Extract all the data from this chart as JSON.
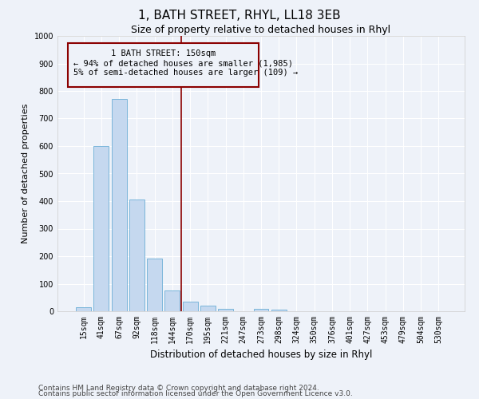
{
  "title": "1, BATH STREET, RHYL, LL18 3EB",
  "subtitle": "Size of property relative to detached houses in Rhyl",
  "xlabel": "Distribution of detached houses by size in Rhyl",
  "ylabel": "Number of detached properties",
  "categories": [
    "15sqm",
    "41sqm",
    "67sqm",
    "92sqm",
    "118sqm",
    "144sqm",
    "170sqm",
    "195sqm",
    "221sqm",
    "247sqm",
    "273sqm",
    "298sqm",
    "324sqm",
    "350sqm",
    "376sqm",
    "401sqm",
    "427sqm",
    "453sqm",
    "479sqm",
    "504sqm",
    "530sqm"
  ],
  "values": [
    15,
    600,
    770,
    405,
    190,
    75,
    35,
    20,
    10,
    0,
    10,
    5,
    0,
    0,
    0,
    0,
    0,
    0,
    0,
    0,
    0
  ],
  "bar_color": "#c5d8ef",
  "bar_edge_color": "#6aaed6",
  "vline_color": "#8b0000",
  "ylim": [
    0,
    1000
  ],
  "yticks": [
    0,
    100,
    200,
    300,
    400,
    500,
    600,
    700,
    800,
    900,
    1000
  ],
  "annotation_title": "1 BATH STREET: 150sqm",
  "annotation_line1": "← 94% of detached houses are smaller (1,985)",
  "annotation_line2": "5% of semi-detached houses are larger (109) →",
  "annotation_box_color": "#8b0000",
  "footnote1": "Contains HM Land Registry data © Crown copyright and database right 2024.",
  "footnote2": "Contains public sector information licensed under the Open Government Licence v3.0.",
  "background_color": "#eef2f9",
  "grid_color": "#ffffff",
  "title_fontsize": 11,
  "subtitle_fontsize": 9,
  "xlabel_fontsize": 8.5,
  "ylabel_fontsize": 8,
  "tick_fontsize": 7,
  "annotation_fontsize": 7.5,
  "footnote_fontsize": 6.5
}
